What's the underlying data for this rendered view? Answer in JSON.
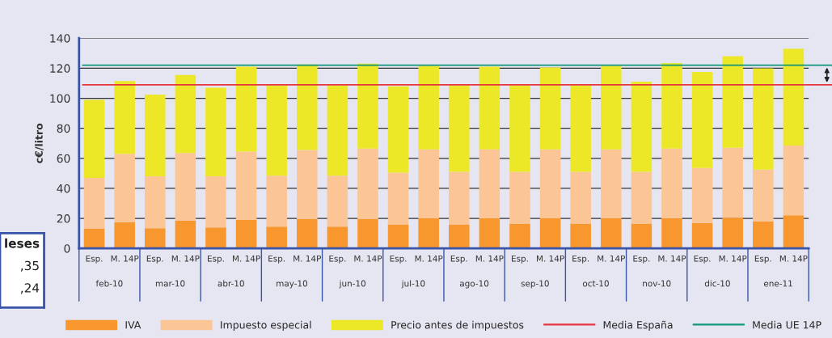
{
  "chart_data": [
    {
      "type": "bar",
      "stacked": true,
      "ylabel": "c€/litro",
      "categories": [
        "Esp.",
        "M. 14P",
        "Esp.",
        "M. 14P",
        "Esp.",
        "M. 14P",
        "Esp.",
        "M. 14P",
        "Esp.",
        "M. 14P",
        "Esp.",
        "M. 14P",
        "Esp.",
        "M. 14P",
        "Esp.",
        "M. 14P",
        "Esp.",
        "M. 14P",
        "Esp.",
        "M. 14P",
        "Esp.",
        "M. 14P",
        "Esp.",
        "M. 14P"
      ],
      "annotations": [
        "feb-10",
        "mar-10",
        "abr-10",
        "may-10",
        "jun-10",
        "jul-10",
        "ago-10",
        "sep-10",
        "oct-10",
        "nov-10",
        "dic-10",
        "ene-11"
      ],
      "series": [
        {
          "name": "IVA",
          "color": "#f7972e",
          "values": [
            13,
            17.5,
            13.5,
            18.5,
            14,
            19,
            14.5,
            19.5,
            14.5,
            19.5,
            16,
            20,
            16,
            20,
            16.5,
            20,
            16.5,
            20,
            16.5,
            20,
            17,
            20.5,
            18,
            22
          ]
        },
        {
          "name": "Impuesto especial",
          "color": "#fcc596",
          "values": [
            34,
            45.5,
            34.5,
            45,
            34,
            45.5,
            34,
            46,
            34,
            47,
            34.5,
            46,
            35,
            46,
            34.5,
            46,
            34.5,
            46,
            34.5,
            46.5,
            36.5,
            46.5,
            34.5,
            46.5
          ]
        },
        {
          "name": "Precio antes de impuestos",
          "color": "#ece828",
          "values": [
            52,
            48.5,
            54.5,
            52,
            59,
            56.5,
            60,
            57,
            60,
            56.5,
            57.5,
            55.5,
            57.5,
            55,
            57.5,
            54.5,
            57.5,
            55.5,
            60,
            57,
            64,
            61,
            67.5,
            64.5
          ]
        }
      ],
      "ref_lines": [
        {
          "axis": "y",
          "value": 109,
          "label": "Media España",
          "color": "#e8343c"
        },
        {
          "axis": "y",
          "value": 122,
          "label": "Media UE 14P",
          "color": "#10967a"
        }
      ],
      "ylim": [
        0,
        140
      ],
      "yticks": [
        0,
        20,
        40,
        60,
        80,
        100,
        120,
        140
      ],
      "grid": "y",
      "legend": "bottom"
    },
    {
      "type": "other",
      "annotations": [
        "leses",
        ",35",
        ",24"
      ]
    }
  ]
}
